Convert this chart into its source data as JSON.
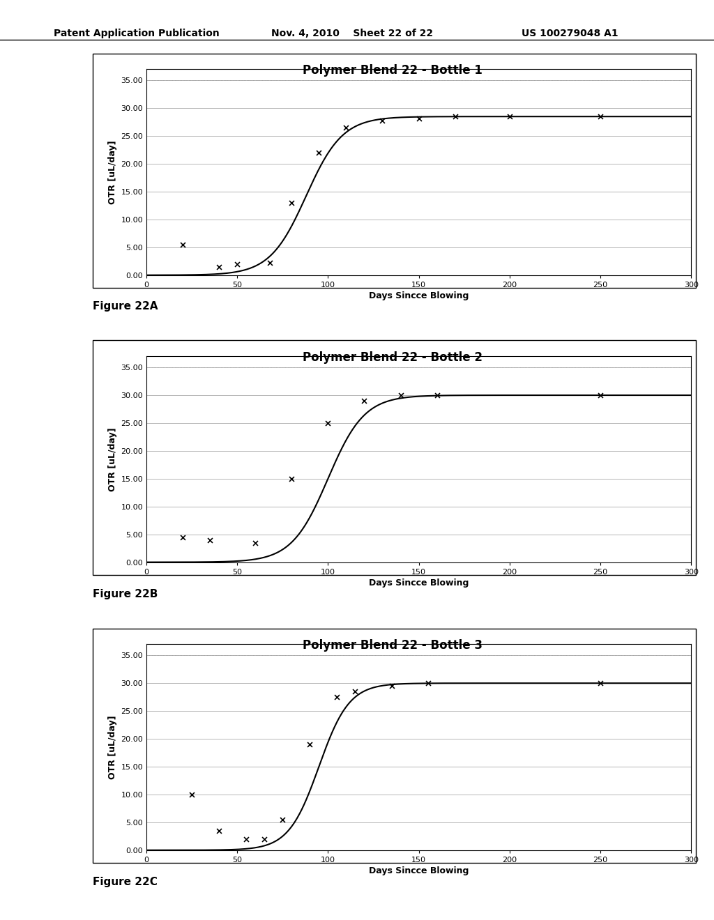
{
  "charts": [
    {
      "title": "Polymer Blend 22 - Bottle 1",
      "ylabel": "OTR [uL/day]",
      "xlabel": "Days Sincce Blowing",
      "ylim": [
        0,
        35
      ],
      "xlim": [
        0,
        300
      ],
      "yticks": [
        0.0,
        5.0,
        10.0,
        15.0,
        20.0,
        25.0,
        30.0,
        35.0
      ],
      "xticks": [
        0,
        50,
        100,
        150,
        200,
        250,
        300
      ],
      "sigmoid_x0": 88,
      "sigmoid_k": 0.1,
      "sigmoid_L": 28.5,
      "scatter_x": [
        20,
        40,
        50,
        68,
        80,
        95,
        110,
        130,
        150,
        170,
        200,
        250
      ],
      "scatter_y": [
        5.5,
        1.5,
        2.0,
        2.2,
        13.0,
        22.0,
        26.5,
        27.8,
        28.2,
        28.5,
        28.5,
        28.5
      ],
      "fig_label": "Figure 22A"
    },
    {
      "title": "Polymer Blend 22 - Bottle 2",
      "ylabel": "OTR [uL/day]",
      "xlabel": "Days Sincce Blowing",
      "ylim": [
        0,
        35
      ],
      "xlim": [
        0,
        300
      ],
      "yticks": [
        0.0,
        5.0,
        10.0,
        15.0,
        20.0,
        25.0,
        30.0,
        35.0
      ],
      "xticks": [
        0,
        50,
        100,
        150,
        200,
        250,
        300
      ],
      "sigmoid_x0": 100,
      "sigmoid_k": 0.1,
      "sigmoid_L": 30.0,
      "scatter_x": [
        20,
        35,
        60,
        80,
        100,
        120,
        140,
        160,
        250
      ],
      "scatter_y": [
        4.5,
        4.0,
        3.5,
        15.0,
        25.0,
        29.0,
        30.0,
        30.0,
        30.0
      ],
      "fig_label": "Figure 22B"
    },
    {
      "title": "Polymer Blend 22 - Bottle 3",
      "ylabel": "OTR [uL/day]",
      "xlabel": "Days Sincce Blowing",
      "ylim": [
        0,
        35
      ],
      "xlim": [
        0,
        300
      ],
      "yticks": [
        0.0,
        5.0,
        10.0,
        15.0,
        20.0,
        25.0,
        30.0,
        35.0
      ],
      "xticks": [
        0,
        50,
        100,
        150,
        200,
        250,
        300
      ],
      "sigmoid_x0": 95,
      "sigmoid_k": 0.12,
      "sigmoid_L": 30.0,
      "scatter_x": [
        25,
        40,
        55,
        65,
        75,
        90,
        105,
        115,
        135,
        155,
        250
      ],
      "scatter_y": [
        10.0,
        3.5,
        2.0,
        2.0,
        5.5,
        19.0,
        27.5,
        28.5,
        29.5,
        30.0,
        30.0
      ],
      "fig_label": "Figure 22C"
    }
  ],
  "header_left": "Patent Application Publication",
  "header_mid": "Nov. 4, 2010    Sheet 22 of 22",
  "header_right": "US 100279048 A1",
  "bg_color": "#ffffff",
  "plot_bg_color": "#ffffff",
  "line_color": "#000000",
  "scatter_color": "#000000",
  "grid_color": "#999999",
  "title_fontsize": 12,
  "label_fontsize": 9,
  "tick_fontsize": 8,
  "header_fontsize": 10,
  "fig_label_fontsize": 11
}
